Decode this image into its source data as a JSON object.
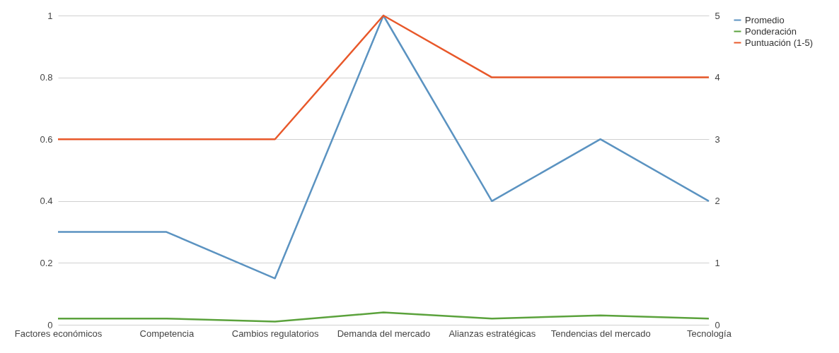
{
  "chart_data": {
    "type": "line",
    "categories": [
      "Factores económicos",
      "Competencia",
      "Cambios regulatorios",
      "Demanda del mercado",
      "Alianzas estratégicas",
      "Tendencias del mercado",
      "Tecnología"
    ],
    "series": [
      {
        "name": "Promedio",
        "color": "#5b93c1",
        "values": [
          0.3,
          0.3,
          0.15,
          1,
          0.4,
          0.6,
          0.4
        ]
      },
      {
        "name": "Ponderación",
        "color": "#5ba23c",
        "axis": "y2",
        "values": [
          0.1,
          0.1,
          0.05,
          0.2,
          0.1,
          0.15,
          0.1
        ]
      },
      {
        "name": "Puntuación (1-5)",
        "color": "#e8582a",
        "axis": "y2",
        "values": [
          3,
          3,
          3,
          5,
          4,
          4,
          4
        ]
      }
    ],
    "ylim": [
      0,
      1
    ],
    "yticks": [
      0,
      0.2,
      0.4,
      0.6,
      0.8,
      1
    ],
    "y2lim": [
      0,
      5
    ],
    "y2ticks": [
      0,
      1,
      2,
      3,
      4,
      5
    ],
    "grid": "y",
    "legend": "right",
    "marker": "none",
    "line_style": "solid"
  }
}
